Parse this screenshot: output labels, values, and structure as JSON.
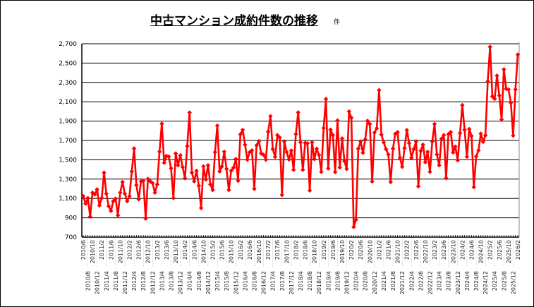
{
  "chart_data": {
    "type": "line",
    "title": "中古マンション成約件数の推移",
    "unit_label": "件",
    "xlabel": "",
    "ylabel": "",
    "ylim": [
      700,
      2700
    ],
    "yticks": [
      700,
      900,
      1100,
      1300,
      1500,
      1700,
      1900,
      2100,
      2300,
      2500,
      2700
    ],
    "ytick_labels": [
      "700",
      "900",
      "1,100",
      "1,300",
      "1,500",
      "1,700",
      "1,900",
      "2,100",
      "2,300",
      "2,500",
      "2,700"
    ],
    "grid": true,
    "legend": "none",
    "x_start": "2010/6",
    "x_end": "2026/2",
    "x_label_interval_months": 2,
    "series": [
      {
        "color": "#ff0000",
        "marker": "diamond",
        "values": [
          1125,
          1046,
          1104,
          912,
          1160,
          1142,
          1194,
          1028,
          1104,
          1367,
          1149,
          1020,
          971,
          1072,
          1098,
          925,
          1160,
          1270,
          1149,
          1072,
          1123,
          1379,
          1617,
          1238,
          1091,
          1277,
          1283,
          892,
          1302,
          1277,
          1258,
          1160,
          1245,
          1584,
          1873,
          1469,
          1540,
          1533,
          1412,
          1104,
          1565,
          1443,
          1546,
          1424,
          1309,
          1642,
          1988,
          1367,
          1277,
          1386,
          1232,
          1001,
          1431,
          1296,
          1443,
          1245,
          1187,
          1578,
          1853,
          1379,
          1431,
          1584,
          1405,
          1187,
          1386,
          1418,
          1508,
          1283,
          1764,
          1809,
          1655,
          1501,
          1578,
          1597,
          1200,
          1649,
          1693,
          1565,
          1552,
          1501,
          1790,
          1950,
          1610,
          1530,
          1755,
          1730,
          1137,
          1690,
          1580,
          1503,
          1595,
          1396,
          1765,
          1990,
          1680,
          1396,
          1675,
          1670,
          1182,
          1680,
          1507,
          1615,
          1550,
          1375,
          1828,
          2128,
          1410,
          1811,
          1755,
          1372,
          1907,
          1420,
          1720,
          1486,
          1405,
          2000,
          1935,
          805,
          880,
          1615,
          1690,
          1572,
          1710,
          1903,
          1870,
          1275,
          1780,
          1825,
          2220,
          1760,
          1680,
          1610,
          1555,
          1270,
          1615,
          1768,
          1786,
          1520,
          1428,
          1620,
          1807,
          1672,
          1520,
          1610,
          1690,
          1225,
          1593,
          1657,
          1475,
          1582,
          1375,
          1690,
          1870,
          1555,
          1443,
          1717,
          1755,
          1310,
          1765,
          1786,
          1576,
          1636,
          1495,
          1775,
          2065,
          1810,
          1532,
          1818,
          1746,
          1217,
          1536,
          1596,
          1770,
          1685,
          1753,
          2310,
          2668,
          2155,
          2130,
          2370,
          2165,
          1917,
          2435,
          2233,
          2227,
          2090,
          1750,
          2227,
          2588
        ]
      }
    ]
  }
}
